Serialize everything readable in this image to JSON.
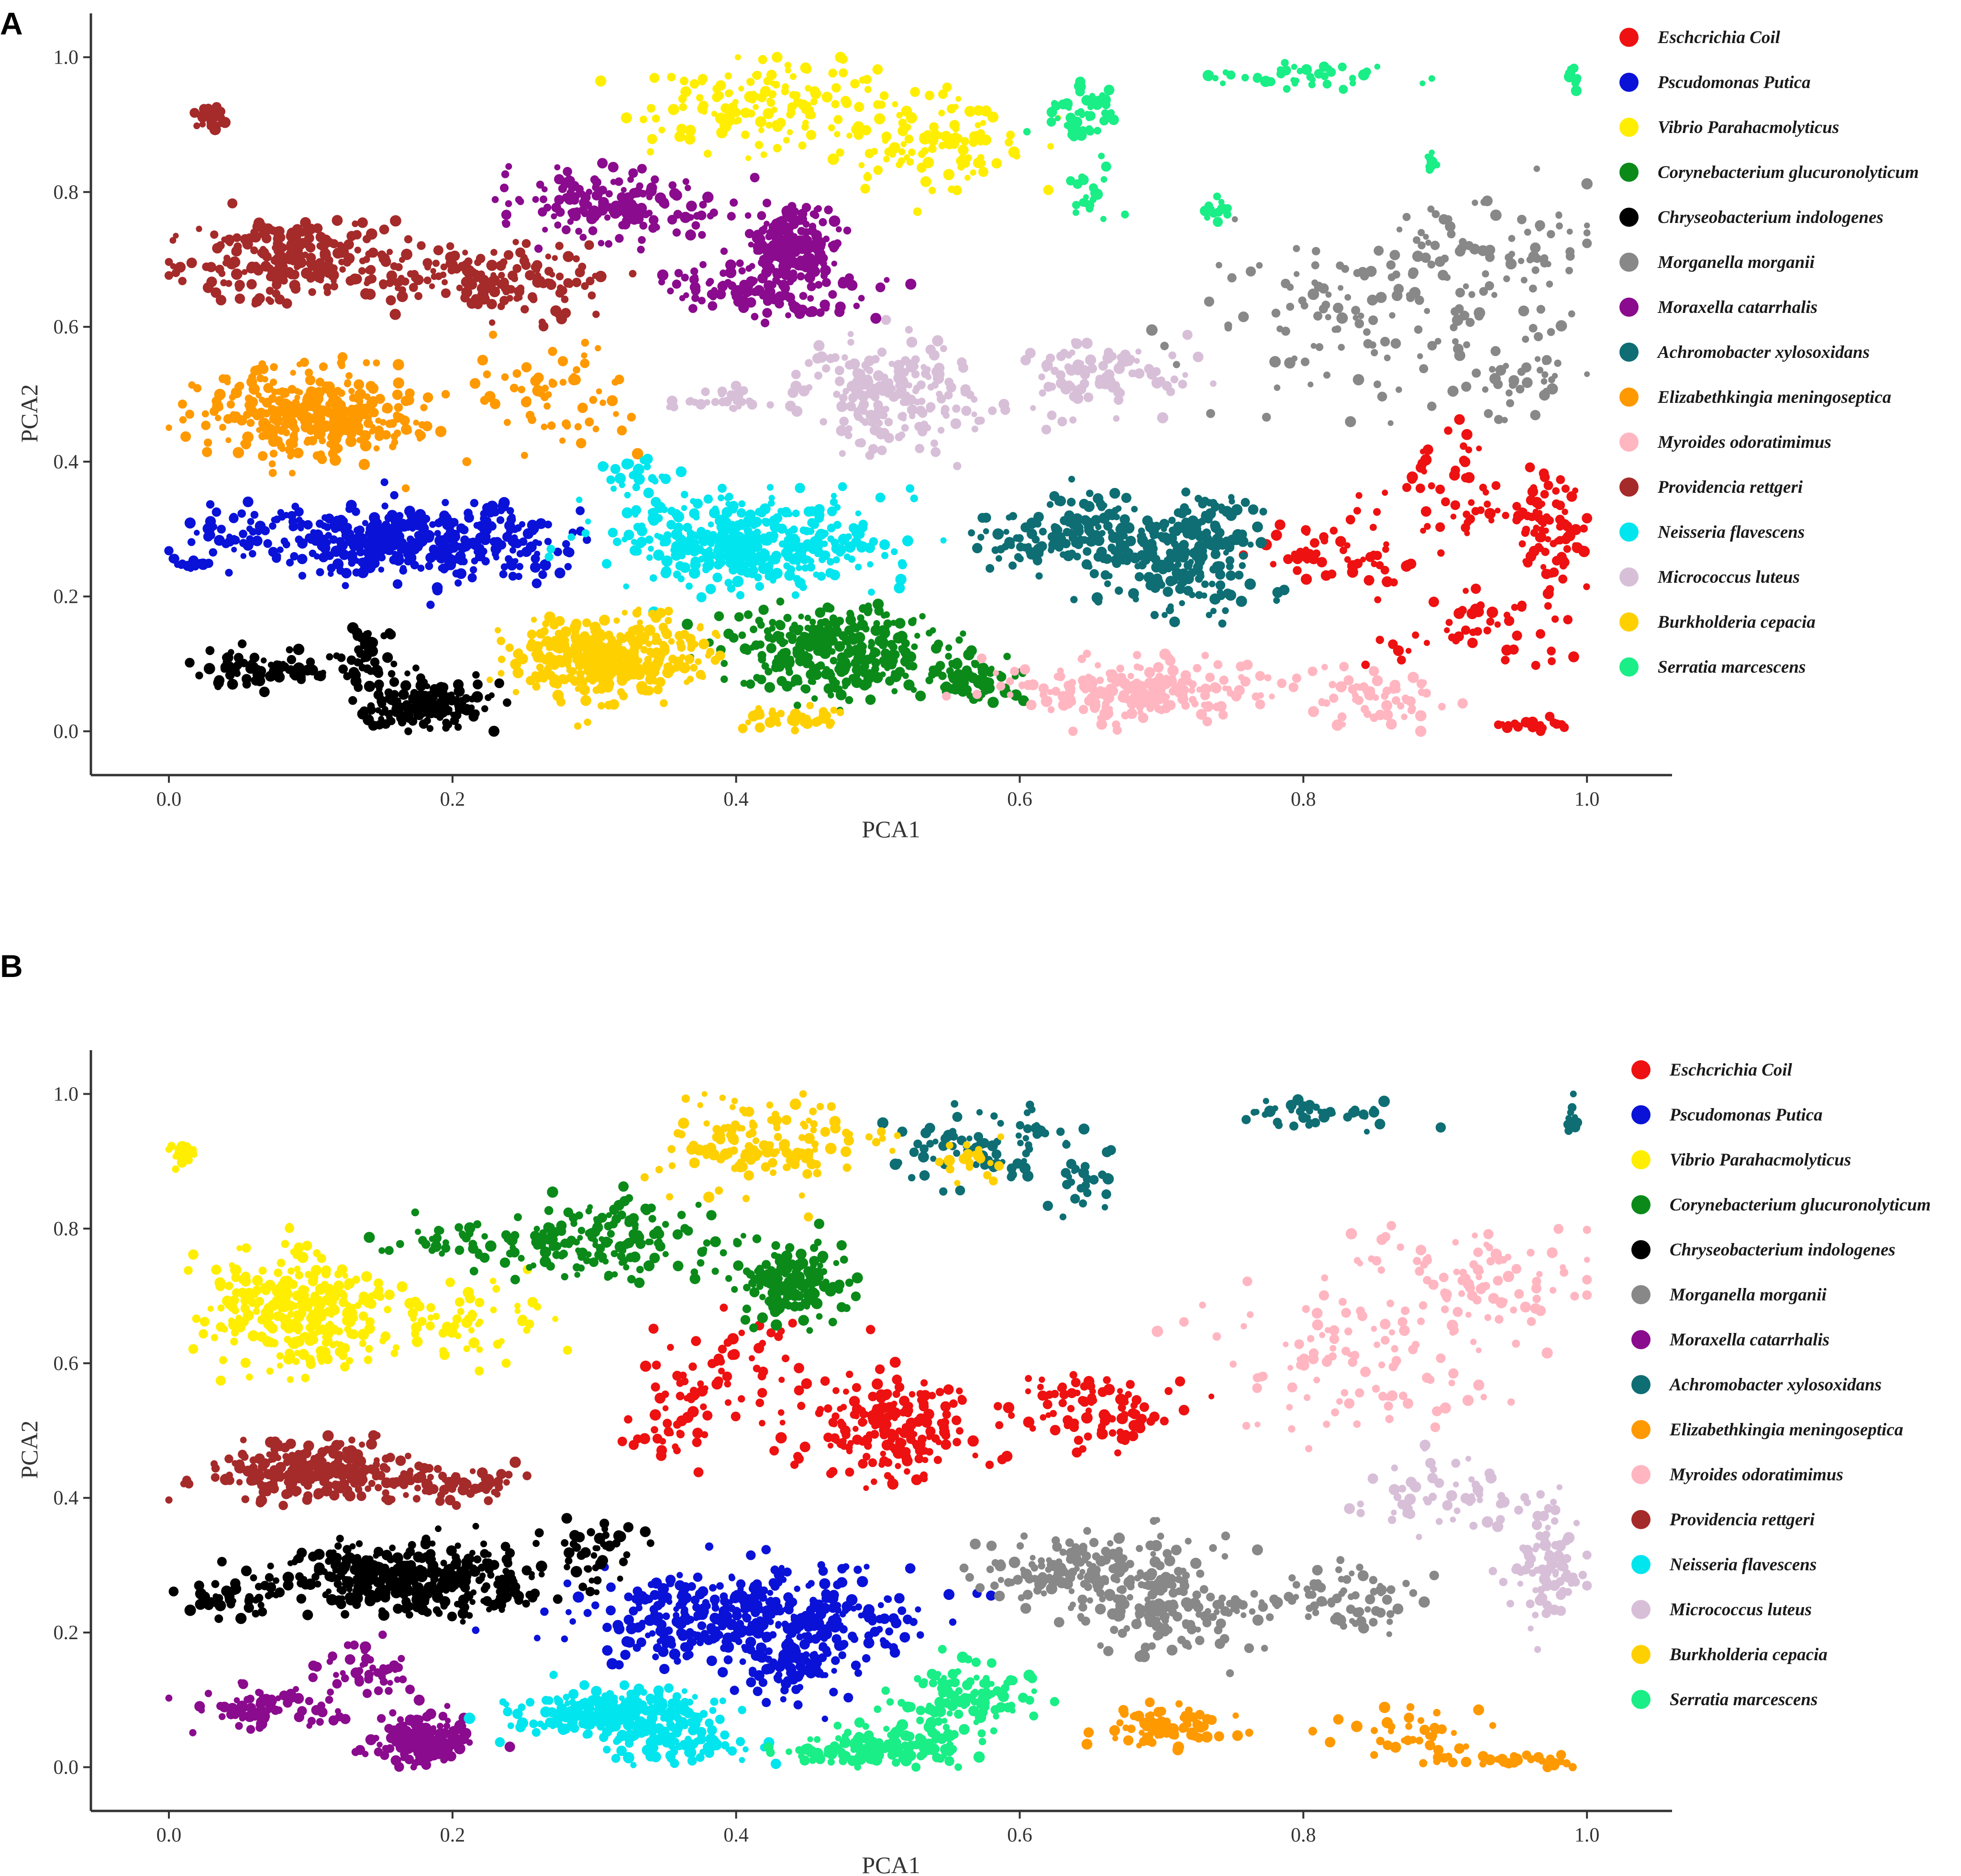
{
  "chart_data": [
    {
      "type": "scatter",
      "panel_label": "A",
      "title": "",
      "xlabel": "PCA1",
      "ylabel": "PCA2",
      "xlim": [
        -0.055,
        1.06
      ],
      "ylim": [
        -0.065,
        1.065
      ],
      "xticks": [
        "0.0",
        "0.2",
        "0.4",
        "0.6",
        "0.8",
        "1.0"
      ],
      "yticks": [
        "0.0",
        "0.2",
        "0.4",
        "0.6",
        "0.8",
        "1.0"
      ],
      "grid": false,
      "legend_position": "right",
      "series": [
        {
          "name": "Eschcrichia Coil",
          "color": "#ee1111",
          "clusters": [
            [
              0.82,
              0.26,
              0.05,
              0.04,
              50
            ],
            [
              0.97,
              0.3,
              0.025,
              0.08,
              90
            ],
            [
              0.9,
              0.35,
              0.05,
              0.08,
              50
            ],
            [
              0.92,
              0.15,
              0.06,
              0.06,
              50
            ],
            [
              0.96,
              0.01,
              0.03,
              0.01,
              20
            ]
          ]
        },
        {
          "name": "Pscudomonas Putica",
          "color": "#0a12d8",
          "clusters": [
            [
              0.17,
              0.28,
              0.1,
              0.05,
              420
            ],
            [
              0.05,
              0.3,
              0.035,
              0.035,
              35
            ],
            [
              0.02,
              0.25,
              0.015,
              0.01,
              12
            ]
          ]
        },
        {
          "name": "Vibrio Parahacmolyticus",
          "color": "#ffee00",
          "clusters": [
            [
              0.42,
              0.93,
              0.07,
              0.06,
              150
            ],
            [
              0.54,
              0.87,
              0.06,
              0.08,
              110
            ]
          ]
        },
        {
          "name": "Corynebacterium glucuronolyticum",
          "color": "#0b8a1a",
          "clusters": [
            [
              0.47,
              0.12,
              0.07,
              0.06,
              320
            ],
            [
              0.56,
              0.08,
              0.035,
              0.035,
              70
            ]
          ]
        },
        {
          "name": "Chryseobacterium indologenes",
          "color": "#000000",
          "clusters": [
            [
              0.18,
              0.04,
              0.035,
              0.03,
              170
            ],
            [
              0.07,
              0.09,
              0.05,
              0.025,
              70
            ],
            [
              0.14,
              0.1,
              0.03,
              0.05,
              50
            ]
          ]
        },
        {
          "name": "Morganella morganii",
          "color": "#888888",
          "clusters": [
            [
              0.84,
              0.61,
              0.1,
              0.13,
              110
            ],
            [
              0.93,
              0.72,
              0.07,
              0.07,
              80
            ],
            [
              0.95,
              0.53,
              0.04,
              0.06,
              40
            ]
          ]
        },
        {
          "name": "Moraxella catarrhalis",
          "color": "#8a0b8d",
          "clusters": [
            [
              0.31,
              0.78,
              0.07,
              0.05,
              170
            ],
            [
              0.44,
              0.72,
              0.03,
              0.05,
              180
            ],
            [
              0.42,
              0.65,
              0.07,
              0.035,
              120
            ]
          ]
        },
        {
          "name": "Achromobacter xylosoxidans",
          "color": "#0e6e73",
          "clusters": [
            [
              0.64,
              0.29,
              0.06,
              0.05,
              160
            ],
            [
              0.71,
              0.24,
              0.05,
              0.07,
              150
            ],
            [
              0.73,
              0.3,
              0.03,
              0.05,
              70
            ]
          ]
        },
        {
          "name": "Elizabethkingia meningoseptica",
          "color": "#ff9900",
          "clusters": [
            [
              0.1,
              0.47,
              0.07,
              0.06,
              360
            ],
            [
              0.27,
              0.5,
              0.05,
              0.06,
              60
            ]
          ]
        },
        {
          "name": "Myroides odoratimimus",
          "color": "#ffb6c1",
          "clusters": [
            [
              0.68,
              0.06,
              0.08,
              0.04,
              220
            ],
            [
              0.85,
              0.05,
              0.05,
              0.04,
              60
            ]
          ]
        },
        {
          "name": "Providencia rettgeri",
          "color": "#a52a2a",
          "clusters": [
            [
              0.09,
              0.7,
              0.07,
              0.05,
              230
            ],
            [
              0.23,
              0.67,
              0.07,
              0.05,
              170
            ],
            [
              0.03,
              0.91,
              0.01,
              0.015,
              25
            ]
          ]
        },
        {
          "name": "Neisseria flavescens",
          "color": "#00e5ee",
          "clusters": [
            [
              0.41,
              0.28,
              0.09,
              0.06,
              380
            ],
            [
              0.33,
              0.37,
              0.025,
              0.04,
              30
            ]
          ]
        },
        {
          "name": "Micrococcus luteus",
          "color": "#d8bfd8",
          "clusters": [
            [
              0.51,
              0.5,
              0.06,
              0.07,
              200
            ],
            [
              0.66,
              0.53,
              0.05,
              0.05,
              90
            ],
            [
              0.39,
              0.49,
              0.04,
              0.02,
              30
            ]
          ]
        },
        {
          "name": "Burkholderia cepacia",
          "color": "#ffd000",
          "clusters": [
            [
              0.31,
              0.11,
              0.06,
              0.05,
              400
            ],
            [
              0.44,
              0.02,
              0.035,
              0.015,
              40
            ]
          ]
        },
        {
          "name": "Serratia marcescens",
          "color": "#1aee86",
          "clusters": [
            [
              0.64,
              0.92,
              0.03,
              0.04,
              50
            ],
            [
              0.8,
              0.97,
              0.06,
              0.02,
              40
            ],
            [
              0.65,
              0.79,
              0.02,
              0.05,
              20
            ],
            [
              0.74,
              0.77,
              0.01,
              0.02,
              15
            ],
            [
              0.99,
              0.97,
              0.005,
              0.02,
              10
            ],
            [
              0.89,
              0.84,
              0.005,
              0.02,
              10
            ]
          ]
        }
      ]
    },
    {
      "type": "scatter",
      "panel_label": "B",
      "title": "",
      "xlabel": "PCA1",
      "ylabel": "PCA2",
      "xlim": [
        -0.055,
        1.06
      ],
      "ylim": [
        -0.065,
        1.065
      ],
      "xticks": [
        "0.0",
        "0.2",
        "0.4",
        "0.6",
        "0.8",
        "1.0"
      ],
      "yticks": [
        "0.0",
        "0.2",
        "0.4",
        "0.6",
        "0.8",
        "1.0"
      ],
      "grid": false,
      "legend_position": "right",
      "series": [
        {
          "name": "Eschcrichia Coil",
          "color": "#ee1111",
          "clusters": [
            [
              0.51,
              0.5,
              0.06,
              0.07,
              200
            ],
            [
              0.66,
              0.53,
              0.05,
              0.05,
              90
            ],
            [
              0.39,
              0.58,
              0.05,
              0.07,
              60
            ],
            [
              0.35,
              0.5,
              0.03,
              0.05,
              30
            ]
          ]
        },
        {
          "name": "Pscudomonas Putica",
          "color": "#0a12d8",
          "clusters": [
            [
              0.41,
              0.22,
              0.1,
              0.06,
              420
            ],
            [
              0.44,
              0.15,
              0.03,
              0.05,
              80
            ]
          ]
        },
        {
          "name": "Vibrio Parahacmolyticus",
          "color": "#ffee00",
          "clusters": [
            [
              0.09,
              0.68,
              0.06,
              0.08,
              300
            ],
            [
              0.21,
              0.66,
              0.05,
              0.05,
              60
            ],
            [
              0.01,
              0.91,
              0.01,
              0.015,
              25
            ]
          ]
        },
        {
          "name": "Corynebacterium glucuronolyticum",
          "color": "#0b8a1a",
          "clusters": [
            [
              0.31,
              0.78,
              0.07,
              0.05,
              170
            ],
            [
              0.44,
              0.72,
              0.03,
              0.05,
              180
            ],
            [
              0.2,
              0.78,
              0.05,
              0.03,
              40
            ]
          ]
        },
        {
          "name": "Chryseobacterium indologenes",
          "color": "#000000",
          "clusters": [
            [
              0.17,
              0.28,
              0.09,
              0.05,
              400
            ],
            [
              0.3,
              0.33,
              0.04,
              0.04,
              40
            ],
            [
              0.04,
              0.25,
              0.03,
              0.02,
              30
            ]
          ]
        },
        {
          "name": "Morganella morganii",
          "color": "#888888",
          "clusters": [
            [
              0.64,
              0.29,
              0.06,
              0.05,
              160
            ],
            [
              0.71,
              0.24,
              0.05,
              0.07,
              150
            ],
            [
              0.83,
              0.25,
              0.05,
              0.04,
              70
            ]
          ]
        },
        {
          "name": "Moraxella catarrhalis",
          "color": "#8a0b8d",
          "clusters": [
            [
              0.18,
              0.04,
              0.035,
              0.03,
              170
            ],
            [
              0.07,
              0.09,
              0.05,
              0.025,
              70
            ],
            [
              0.14,
              0.14,
              0.03,
              0.04,
              50
            ]
          ]
        },
        {
          "name": "Achromobacter xylosoxidans",
          "color": "#0e6e73",
          "clusters": [
            [
              0.58,
              0.92,
              0.06,
              0.05,
              90
            ],
            [
              0.8,
              0.97,
              0.06,
              0.02,
              40
            ],
            [
              0.65,
              0.86,
              0.02,
              0.04,
              20
            ],
            [
              0.99,
              0.97,
              0.005,
              0.02,
              10
            ]
          ]
        },
        {
          "name": "Elizabethkingia meningoseptica",
          "color": "#ff9900",
          "clusters": [
            [
              0.7,
              0.06,
              0.04,
              0.03,
              90
            ],
            [
              0.88,
              0.05,
              0.05,
              0.04,
              40
            ],
            [
              0.95,
              0.01,
              0.04,
              0.01,
              30
            ]
          ]
        },
        {
          "name": "Myroides odoratimimus",
          "color": "#ffb6c1",
          "clusters": [
            [
              0.84,
              0.61,
              0.1,
              0.13,
              110
            ],
            [
              0.93,
              0.72,
              0.07,
              0.07,
              80
            ]
          ]
        },
        {
          "name": "Providencia rettgeri",
          "color": "#a52a2a",
          "clusters": [
            [
              0.1,
              0.44,
              0.06,
              0.04,
              260
            ],
            [
              0.2,
              0.42,
              0.04,
              0.03,
              60
            ]
          ]
        },
        {
          "name": "Neisseria flavescens",
          "color": "#00e5ee",
          "clusters": [
            [
              0.32,
              0.08,
              0.06,
              0.035,
              300
            ],
            [
              0.37,
              0.03,
              0.05,
              0.02,
              60
            ]
          ]
        },
        {
          "name": "Micrococcus luteus",
          "color": "#d8bfd8",
          "clusters": [
            [
              0.97,
              0.3,
              0.025,
              0.08,
              90
            ],
            [
              0.9,
              0.4,
              0.05,
              0.05,
              60
            ]
          ]
        },
        {
          "name": "Burkholderia cepacia",
          "color": "#ffd000",
          "clusters": [
            [
              0.42,
              0.93,
              0.07,
              0.06,
              150
            ],
            [
              0.57,
              0.9,
              0.02,
              0.03,
              20
            ]
          ]
        },
        {
          "name": "Serratia marcescens",
          "color": "#1aee86",
          "clusters": [
            [
              0.5,
              0.03,
              0.05,
              0.025,
              150
            ],
            [
              0.56,
              0.1,
              0.05,
              0.05,
              120
            ]
          ]
        }
      ]
    }
  ]
}
